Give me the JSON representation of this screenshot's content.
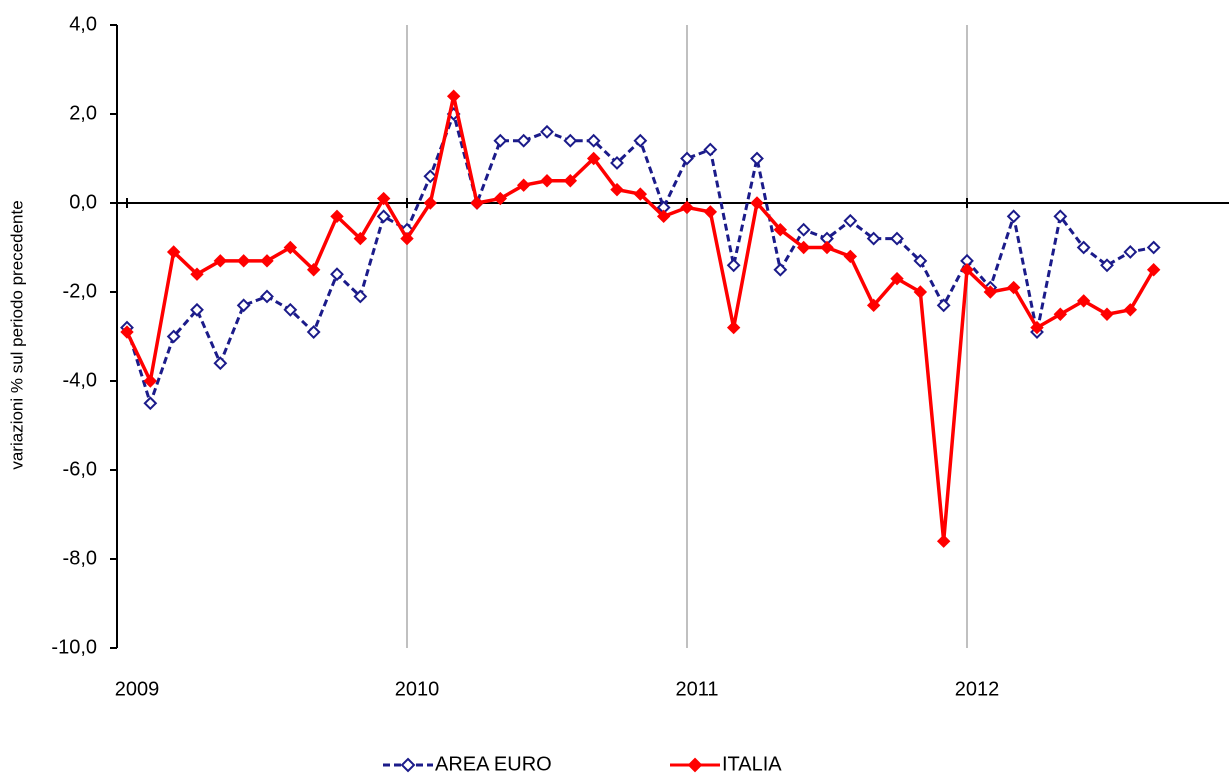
{
  "chart_data": {
    "type": "line",
    "y_label": "variazioni % sul periodo precedente",
    "categories": [
      "2009",
      null,
      null,
      null,
      null,
      null,
      null,
      null,
      null,
      null,
      null,
      null,
      "2010",
      null,
      null,
      null,
      null,
      null,
      null,
      null,
      null,
      null,
      null,
      null,
      "2011",
      null,
      null,
      null,
      null,
      null,
      null,
      null,
      null,
      null,
      null,
      null,
      "2012",
      null,
      null,
      null,
      null,
      null,
      null,
      null,
      null
    ],
    "series": [
      {
        "name": "AREA EURO",
        "color": "#1b1b8a",
        "dashed": true,
        "marker": "open-diamond",
        "values": [
          -2.8,
          -4.5,
          -3.0,
          -2.4,
          -3.6,
          -2.3,
          -2.1,
          -2.4,
          -2.9,
          -1.6,
          -2.1,
          -0.3,
          -0.6,
          0.6,
          2.0,
          0.0,
          1.4,
          1.4,
          1.6,
          1.4,
          1.4,
          0.9,
          1.4,
          -0.1,
          1.0,
          1.2,
          -1.4,
          1.0,
          -1.5,
          -0.6,
          -0.8,
          -0.4,
          -0.8,
          -0.8,
          -1.3,
          -2.3,
          -1.3,
          -1.9,
          -0.3,
          -2.9,
          -0.3,
          -1.0,
          -1.4,
          -1.1,
          -1.0
        ]
      },
      {
        "name": "ITALIA",
        "color": "#ff0000",
        "dashed": false,
        "marker": "filled-diamond",
        "values": [
          -2.9,
          -4.0,
          -1.1,
          -1.6,
          -1.3,
          -1.3,
          -1.3,
          -1.0,
          -1.5,
          -0.3,
          -0.8,
          0.1,
          -0.8,
          0.0,
          2.4,
          0.0,
          0.1,
          0.4,
          0.5,
          0.5,
          1.0,
          0.3,
          0.2,
          -0.3,
          -0.1,
          -0.2,
          -2.8,
          0.0,
          -0.6,
          -1.0,
          -1.0,
          -1.2,
          -2.3,
          -1.7,
          -2.0,
          -7.6,
          -1.5,
          -2.0,
          -1.9,
          -2.8,
          -2.5,
          -2.2,
          -2.5,
          -2.4,
          -1.5
        ]
      }
    ],
    "ylim": [
      -10,
      4
    ],
    "yticks": [
      {
        "value": -10,
        "label": "-10,0"
      },
      {
        "value": -8,
        "label": "-8,0"
      },
      {
        "value": -6,
        "label": "-6,0"
      },
      {
        "value": -4,
        "label": "-4,0"
      },
      {
        "value": -2,
        "label": "-2,0"
      },
      {
        "value": 0,
        "label": "0,0"
      },
      {
        "value": 2,
        "label": "2,0"
      },
      {
        "value": 4,
        "label": "4,0"
      }
    ],
    "grid": "x",
    "legend": "bottom"
  }
}
